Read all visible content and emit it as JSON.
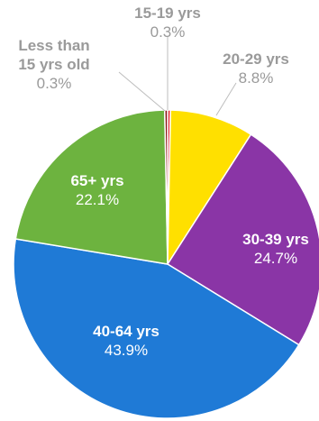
{
  "chart_data": {
    "type": "pie",
    "slices": [
      {
        "category_lines": [
          "15-19 yrs"
        ],
        "percent_label": "0.3%",
        "value": 0.3,
        "color": "#e8202a",
        "label_style": "outside"
      },
      {
        "category_lines": [
          "20-29 yrs"
        ],
        "percent_label": "8.8%",
        "value": 8.8,
        "color": "#ffe000",
        "label_style": "outside"
      },
      {
        "category_lines": [
          "30-39 yrs"
        ],
        "percent_label": "24.7%",
        "value": 24.7,
        "color": "#8a35a6",
        "label_style": "inside"
      },
      {
        "category_lines": [
          "40-64 yrs"
        ],
        "percent_label": "43.9%",
        "value": 43.9,
        "color": "#1f7ad6",
        "label_style": "inside"
      },
      {
        "category_lines": [
          "65+ yrs"
        ],
        "percent_label": "22.1%",
        "value": 22.1,
        "color": "#6db33f",
        "label_style": "inside"
      },
      {
        "category_lines": [
          "Less than",
          "15 yrs old"
        ],
        "percent_label": "0.3%",
        "value": 0.3,
        "color": "#8b1a1a",
        "label_style": "outside"
      }
    ],
    "start_angle_deg": 0,
    "direction": "clockwise",
    "legend": "none"
  }
}
